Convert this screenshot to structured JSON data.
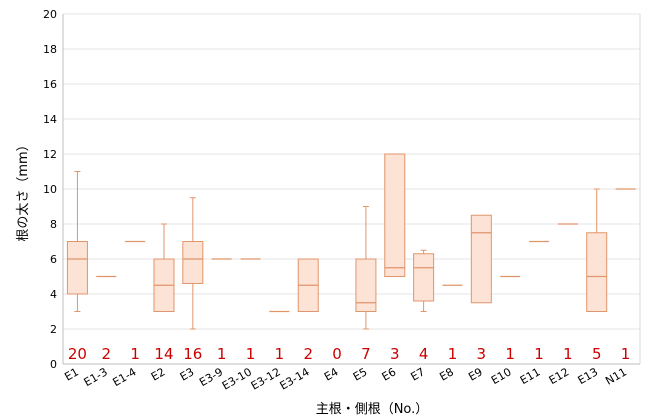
{
  "chart_data": {
    "type": "box",
    "xlabel": "主根・側根（No.）",
    "ylabel": "根の太さ（mm）",
    "ylim": [
      0,
      20
    ],
    "yticks": [
      0,
      2,
      4,
      6,
      8,
      10,
      12,
      14,
      16,
      18,
      20
    ],
    "grid": "horizontal",
    "colors": {
      "box_fill": "#fde3d6",
      "box_stroke": "#e0956a",
      "count_text": "#cc0000",
      "grid": "#e6e6e6"
    },
    "categories": [
      "E1",
      "E1-3",
      "E1-4",
      "E2",
      "E3",
      "E3-9",
      "E3-10",
      "E3-12",
      "E3-14",
      "E4",
      "E5",
      "E6",
      "E7",
      "E8",
      "E9",
      "E10",
      "E11",
      "E12",
      "E13",
      "N11"
    ],
    "counts": [
      "20",
      "2",
      "1",
      "14",
      "16",
      "1",
      "1",
      "1",
      "2",
      "0",
      "7",
      "3",
      "4",
      "1",
      "3",
      "1",
      "1",
      "1",
      "5",
      "1"
    ],
    "boxes": [
      {
        "min": 3,
        "q1": 4,
        "median": 6,
        "q3": 7,
        "max": 11
      },
      {
        "min": 5,
        "q1": 5,
        "median": 5,
        "q3": 5,
        "max": 5
      },
      {
        "min": 7,
        "q1": 7,
        "median": 7,
        "q3": 7,
        "max": 7
      },
      {
        "min": 3,
        "q1": 3,
        "median": 4.5,
        "q3": 6,
        "max": 8
      },
      {
        "min": 2,
        "q1": 4.6,
        "median": 6,
        "q3": 7,
        "max": 9.5
      },
      {
        "min": 6,
        "q1": 6,
        "median": 6,
        "q3": 6,
        "max": 6
      },
      {
        "min": 6,
        "q1": 6,
        "median": 6,
        "q3": 6,
        "max": 6
      },
      {
        "min": 3,
        "q1": 3,
        "median": 3,
        "q3": 3,
        "max": 3
      },
      {
        "min": 3,
        "q1": 3,
        "median": 4.5,
        "q3": 6,
        "max": 6
      },
      null,
      {
        "min": 2,
        "q1": 3,
        "median": 3.5,
        "q3": 6,
        "max": 9
      },
      {
        "min": 5,
        "q1": 5,
        "median": 5.5,
        "q3": 12,
        "max": 12
      },
      {
        "min": 3,
        "q1": 3.6,
        "median": 5.5,
        "q3": 6.3,
        "max": 6.5
      },
      {
        "min": 4.5,
        "q1": 4.5,
        "median": 4.5,
        "q3": 4.5,
        "max": 4.5
      },
      {
        "min": 3.5,
        "q1": 3.5,
        "median": 7.5,
        "q3": 8.5,
        "max": 8.5
      },
      {
        "min": 5,
        "q1": 5,
        "median": 5,
        "q3": 5,
        "max": 5
      },
      {
        "min": 7,
        "q1": 7,
        "median": 7,
        "q3": 7,
        "max": 7
      },
      {
        "min": 8,
        "q1": 8,
        "median": 8,
        "q3": 8,
        "max": 8
      },
      {
        "min": 3,
        "q1": 3,
        "median": 5,
        "q3": 7.5,
        "max": 10
      },
      {
        "min": 10,
        "q1": 10,
        "median": 10,
        "q3": 10,
        "max": 10
      }
    ]
  }
}
